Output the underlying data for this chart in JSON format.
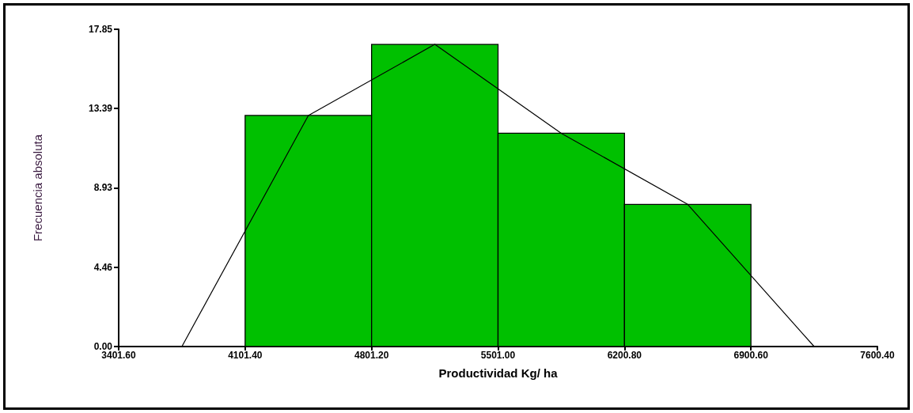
{
  "chart_data": {
    "type": "histogram",
    "xlabel": "Productividad Kg/ ha",
    "ylabel": "Frecuencia absoluta",
    "series": [
      {
        "bins": [
          4101.4,
          4801.2,
          5501.0,
          6200.8,
          6900.6
        ],
        "values": [
          13,
          17,
          12,
          8
        ],
        "color": "#00c000"
      },
      {
        "type": "line",
        "x": [
          3751.5,
          4451.3,
          5151.1,
          5850.9,
          6550.7,
          7250.5
        ],
        "values": [
          0,
          13,
          17,
          12,
          8,
          0
        ],
        "color": "#000000",
        "marker": "none"
      }
    ],
    "xlim": [
      3401.6,
      7600.4
    ],
    "xticks": [
      {
        "value": 3401.6,
        "label": "3401.60"
      },
      {
        "value": 4101.4,
        "label": "4101.40"
      },
      {
        "value": 4801.2,
        "label": "4801.20"
      },
      {
        "value": 5501.0,
        "label": "5501.00"
      },
      {
        "value": 6200.8,
        "label": "6200.80"
      },
      {
        "value": 6900.6,
        "label": "6900.60"
      },
      {
        "value": 7600.4,
        "label": "7600.40"
      }
    ],
    "ylim": [
      0,
      17.85
    ],
    "yticks": [
      {
        "value": 0,
        "label": "0.00"
      },
      {
        "value": 4.46,
        "label": "4.46"
      },
      {
        "value": 8.93,
        "label": "8.93"
      },
      {
        "value": 13.39,
        "label": "13.39"
      },
      {
        "value": 17.85,
        "label": "17.85"
      }
    ],
    "grid": false
  }
}
